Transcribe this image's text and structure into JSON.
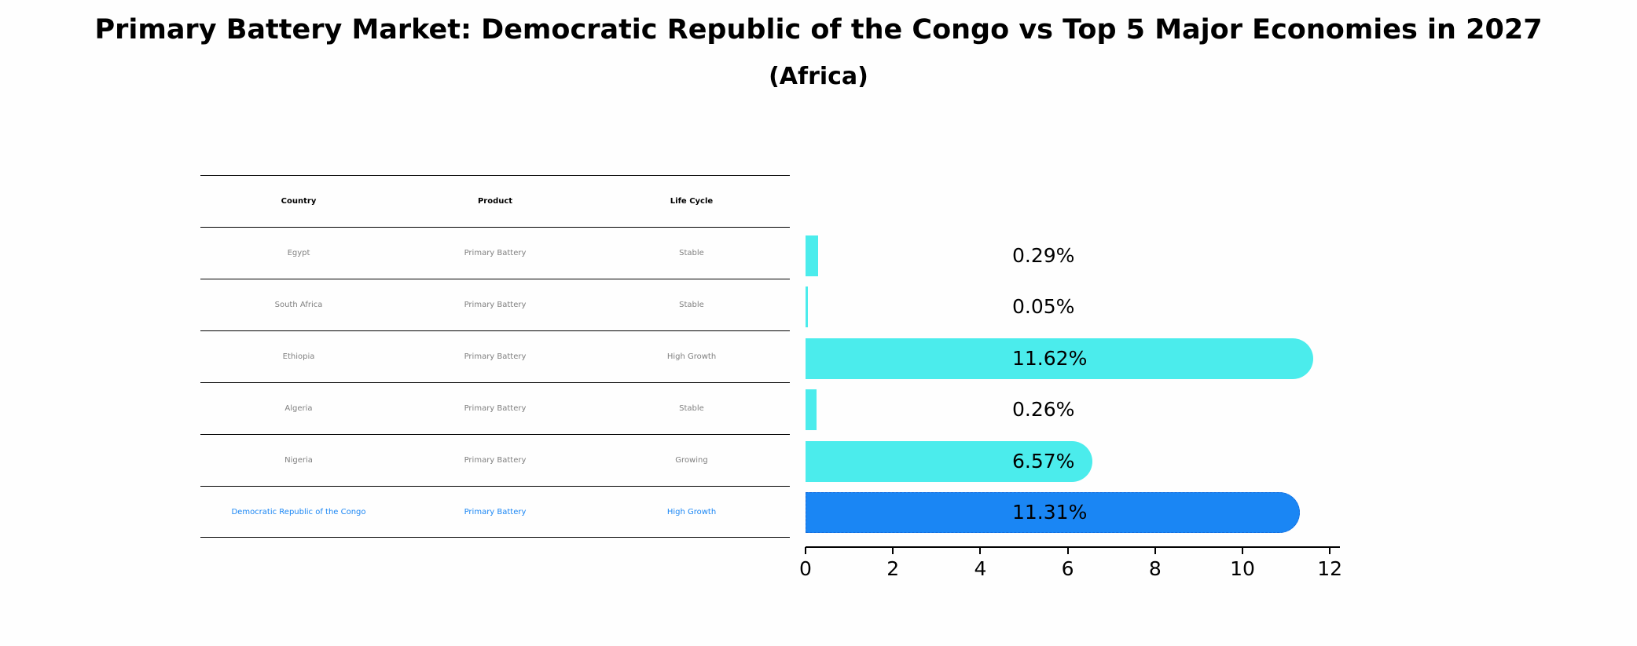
{
  "header": {
    "title": "Primary Battery Market: Democratic Republic of the Congo vs Top 5 Major Economies in 2027",
    "subtitle": "(Africa)"
  },
  "table": {
    "columns": [
      "Country",
      "Product",
      "Life Cycle"
    ],
    "rows": [
      {
        "country": "Egypt",
        "product": "Primary Battery",
        "life_cycle": "Stable"
      },
      {
        "country": "South Africa",
        "product": "Primary Battery",
        "life_cycle": "Stable"
      },
      {
        "country": "Ethiopia",
        "product": "Primary Battery",
        "life_cycle": "High Growth"
      },
      {
        "country": "Algeria",
        "product": "Primary Battery",
        "life_cycle": "Stable"
      },
      {
        "country": "Nigeria",
        "product": "Primary Battery",
        "life_cycle": "Growing"
      },
      {
        "country": "Democratic Republic of the Congo",
        "product": "Primary Battery",
        "life_cycle": "High Growth"
      }
    ]
  },
  "colors": {
    "bar_default": "#4becec",
    "bar_highlight": "#1a86f4",
    "highlight_text": "#1a86f4",
    "row_text": "#808080"
  },
  "chart_data": {
    "type": "bar",
    "orientation": "horizontal",
    "title": "Primary Battery Market: Democratic Republic of the Congo vs Top 5 Major Economies in 2027",
    "subtitle": "(Africa)",
    "categories": [
      "Egypt",
      "South Africa",
      "Ethiopia",
      "Algeria",
      "Nigeria",
      "Democratic Republic of the Congo"
    ],
    "values": [
      0.29,
      0.05,
      11.62,
      0.26,
      6.57,
      11.31
    ],
    "value_labels": [
      "0.29%",
      "0.05%",
      "11.62%",
      "0.26%",
      "6.57%",
      "11.31%"
    ],
    "highlighted_category": "Democratic Republic of the Congo",
    "xlabel": "",
    "ylabel": "",
    "xlim": [
      0,
      12.2
    ],
    "xticks": [
      "0",
      "2",
      "4",
      "6",
      "8",
      "10",
      "12"
    ],
    "grid": false,
    "legend": null
  }
}
